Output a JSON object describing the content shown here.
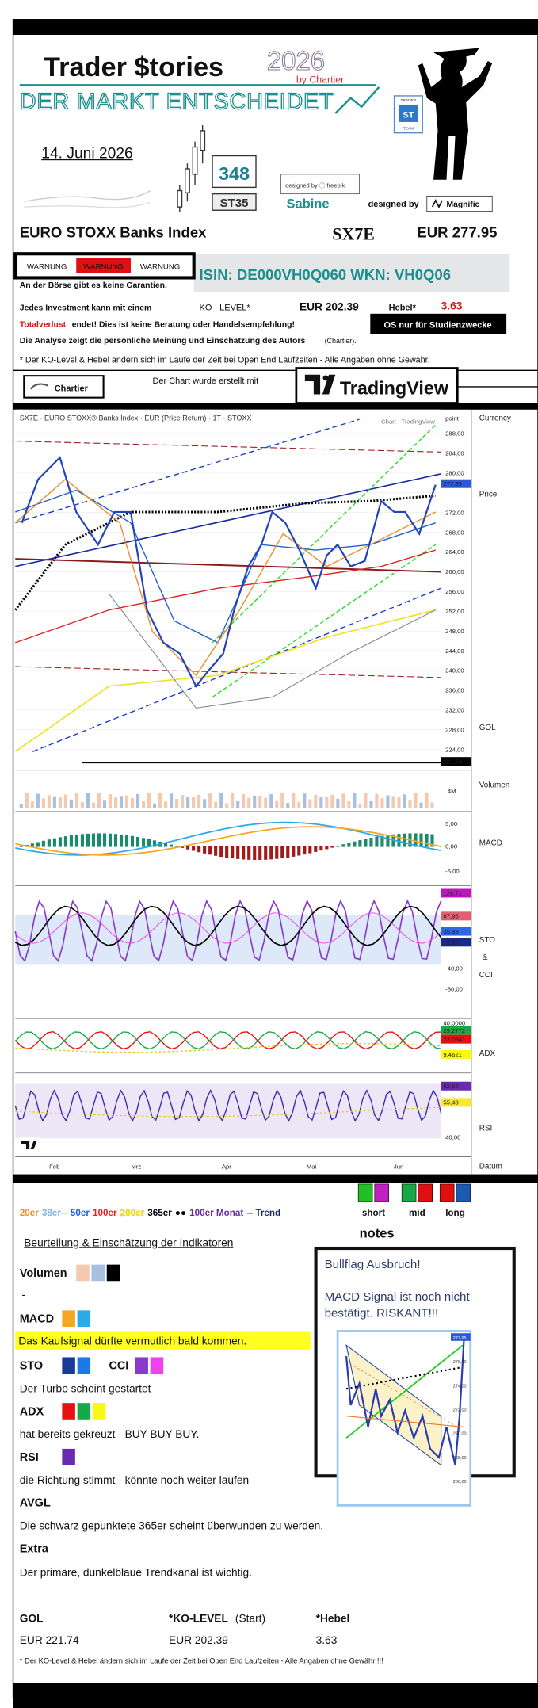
{
  "header": {
    "logo": "Trader $tories",
    "year": "2026",
    "by": "by Chartier",
    "slogan": "DER MARKT ENTSCHEIDET",
    "badge": [
      "TRADER",
      "ST",
      "TEAM"
    ],
    "date": "14. Juni 2026",
    "counter": "348",
    "code": "ST35",
    "author": "Sabine",
    "freepik": "designed by ⓕ freepik",
    "designed_by": "designed by",
    "magnific": "Magnific"
  },
  "instrument": {
    "name": "EURO STOXX Banks Index",
    "symbol": "SX7E",
    "price": "EUR 277.95"
  },
  "warnings": [
    "WARNUNG",
    "WARNUNG",
    "WARNUNG"
  ],
  "isin": "ISIN: DE000VH0Q060 WKN: VH0Q06",
  "disclaimer": {
    "no_guarantee": "An der Börse gibt es keine Garantien.",
    "investment": "Jedes Investment kann mit einem",
    "ko_label": "KO - LEVEL*",
    "ko_value": "EUR 202.39",
    "lever_label": "Hebel*",
    "lever_value": "3.63",
    "total_loss": "Totalverlust",
    "no_advice": "endet! Dies ist keine Beratung oder Handelsempfehlung!",
    "study": "OS nur für Studienzwecke",
    "opinion": "Die Analyse zeigt die persönliche Meinung und Einschätzung des Autors",
    "author": "(Chartier).",
    "note": "* Der KO-Level & Hebel ändern sich im Laufe der Zeit bei Open End Laufzeiten  -  Alle Angaben ohne Gewähr."
  },
  "chart": {
    "credit": "Chartier",
    "created_with": "Der Chart wurde erstellt mit",
    "platform": "TradingView",
    "heading": "SX7E · EURO STOXX® Banks Index · EUR (Price Return) · 1T · STOXX",
    "watermark": "Chart · TradingView",
    "unit": "point",
    "price_axis": [
      "288,00",
      "284,00",
      "280,00",
      "272,00",
      "268,00",
      "264,00",
      "260,00",
      "256,00",
      "252,00",
      "248,00",
      "244,00",
      "240,00",
      "236,00",
      "232,00",
      "228,00",
      "224,00"
    ],
    "last_price": "277,95",
    "gol_price": "221,74",
    "volume_axis": "4M",
    "macd_axis": [
      "5,00",
      "0,00",
      "-5,00"
    ],
    "sto_labels": [
      "128,71",
      "67,96",
      "35,83",
      "12,96"
    ],
    "cci_axis": [
      "-40,00",
      "-80,00"
    ],
    "adx_labels": [
      "40,0000",
      "29,2772",
      "22,0941",
      "9,4621"
    ],
    "rsi_labels": [
      "62,66",
      "55,48",
      "40,00"
    ],
    "months": [
      "Feb",
      "Mrz",
      "Apr",
      "Mai",
      "Jun"
    ],
    "panel_labels": {
      "currency": "Currency",
      "price": "Price",
      "gol": "GOL",
      "volume": "Volumen",
      "macd": "MACD",
      "sto": "STO",
      "and": "&",
      "cci": "CCI",
      "adx": "ADX",
      "rsi": "RSI",
      "date": "Datum"
    }
  },
  "legend": {
    "items": [
      {
        "text": "20er",
        "color": "#f08a24"
      },
      {
        "text": "38er--",
        "color": "#7fb6e6"
      },
      {
        "text": "50er",
        "color": "#1f5fd1"
      },
      {
        "text": "100er",
        "color": "#e02020"
      },
      {
        "text": "200er",
        "color": "#f2e21a"
      },
      {
        "text": "365er",
        "color": "#000000"
      },
      {
        "text": "●●",
        "color": "#000000"
      },
      {
        "text": "100er Monat",
        "color": "#6a2aa0"
      },
      {
        "text": "-- Trend",
        "color": "#1a2a6a"
      }
    ],
    "signals": [
      "short",
      "mid",
      "long"
    ]
  },
  "notes": {
    "title": "notes",
    "lines": [
      "Bullflag Ausbruch!",
      "MACD Signal ist noch nicht",
      "bestätigt. RISKANT!!!"
    ],
    "mini_axis": [
      "277,95",
      "276,00",
      "274,00",
      "272,00",
      "270,00",
      "268,00",
      "266,00"
    ]
  },
  "assessment": {
    "title": "Beurteilung & Einschätzung der Indikatoren",
    "volume": "Volumen",
    "volume_text": "-",
    "macd": "MACD",
    "macd_text": "Das Kaufsignal dürfte vermutlich bald kommen.",
    "sto": "STO",
    "cci": "CCI",
    "sto_text": "Der Turbo scheint gestartet",
    "adx": "ADX",
    "adx_text": "hat bereits gekreuzt - BUY BUY BUY.",
    "rsi": "RSI",
    "rsi_text": "die Richtung stimmt - könnte noch weiter laufen",
    "avgl": "AVGL",
    "avgl_text": "Die schwarz gepunktete 365er scheint überwunden zu werden.",
    "extra": "Extra",
    "extra_text": "Der primäre, dunkelblaue Trendkanal ist wichtig."
  },
  "summary": {
    "gol_label": "GOL",
    "ko_label": "*KO-LEVEL",
    "ko_suffix": "(Start)",
    "lever_label": "*Hebel",
    "gol_value": "EUR 221.74",
    "ko_value": "EUR 202.39",
    "lever_value": "3.63",
    "footer": "* Der KO-Level & Hebel ändern sich im Laufe der Zeit bei Open End Laufzeiten  -  Alle Angaben ohne Gewähr !!!"
  }
}
